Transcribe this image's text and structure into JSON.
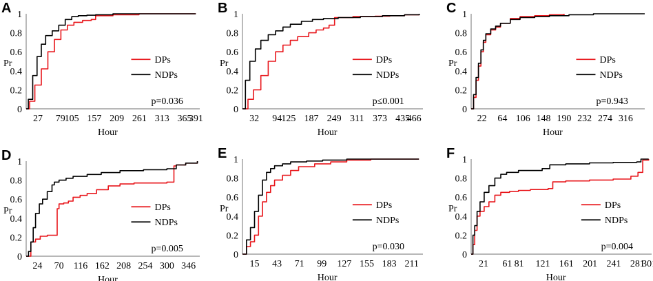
{
  "colors": {
    "dps": "#e8161b",
    "ndps": "#000000",
    "axis": "#8c8c8c"
  },
  "chart_data": [
    {
      "type": "line",
      "panel": "A",
      "xlabel": "Hour",
      "ylabel": "Pr",
      "pvalue": "p=0.036",
      "xlim": [
        0,
        400
      ],
      "ylim": [
        0,
        1
      ],
      "xticks": [
        27,
        79,
        105,
        157,
        209,
        261,
        313,
        365,
        391
      ],
      "yticks": [
        0,
        0.2,
        0.4,
        0.6,
        0.8,
        1
      ],
      "legend": [
        "DPs",
        "NDPs"
      ],
      "series": [
        {
          "name": "DPs",
          "x": [
            0,
            8,
            20,
            35,
            50,
            65,
            80,
            95,
            110,
            130,
            150,
            160,
            200,
            260,
            320,
            391
          ],
          "y": [
            0,
            0.08,
            0.25,
            0.42,
            0.6,
            0.73,
            0.83,
            0.88,
            0.91,
            0.93,
            0.94,
            0.98,
            0.99,
            1,
            1,
            1
          ]
        },
        {
          "name": "NDPs",
          "x": [
            0,
            5,
            15,
            25,
            35,
            45,
            60,
            75,
            90,
            105,
            120,
            140,
            160,
            200,
            260,
            320,
            391
          ],
          "y": [
            0,
            0.1,
            0.35,
            0.55,
            0.68,
            0.77,
            0.82,
            0.88,
            0.94,
            0.97,
            0.98,
            0.985,
            0.99,
            1,
            1,
            1,
            1
          ]
        }
      ]
    },
    {
      "type": "line",
      "panel": "B",
      "xlabel": "Hour",
      "ylabel": "Pr",
      "pvalue": "p≤0.001",
      "xlim": [
        0,
        490
      ],
      "ylim": [
        0,
        1
      ],
      "xticks": [
        32,
        94,
        125,
        187,
        249,
        311,
        373,
        435,
        466
      ],
      "yticks": [
        0,
        0.2,
        0.4,
        0.6,
        0.8,
        1
      ],
      "legend": [
        "DPs",
        "NDPs"
      ],
      "series": [
        {
          "name": "DPs",
          "x": [
            0,
            15,
            30,
            50,
            70,
            90,
            110,
            130,
            150,
            180,
            200,
            220,
            235,
            250,
            300,
            360,
            400,
            440,
            480
          ],
          "y": [
            0,
            0.1,
            0.2,
            0.35,
            0.5,
            0.6,
            0.67,
            0.72,
            0.76,
            0.8,
            0.83,
            0.85,
            0.88,
            0.96,
            0.97,
            0.975,
            0.98,
            0.99,
            1
          ]
        },
        {
          "name": "NDPs",
          "x": [
            0,
            8,
            20,
            35,
            50,
            70,
            90,
            110,
            130,
            160,
            190,
            220,
            260,
            320,
            380,
            440,
            480
          ],
          "y": [
            0,
            0.3,
            0.5,
            0.63,
            0.72,
            0.78,
            0.82,
            0.86,
            0.89,
            0.92,
            0.94,
            0.95,
            0.96,
            0.97,
            0.98,
            0.99,
            1
          ]
        }
      ]
    },
    {
      "type": "line",
      "panel": "C",
      "xlabel": "Hour",
      "ylabel": "Pr",
      "pvalue": "p=0.943",
      "xlim": [
        0,
        355
      ],
      "ylim": [
        0,
        1
      ],
      "xticks": [
        22,
        64,
        106,
        148,
        190,
        232,
        274,
        316
      ],
      "yticks": [
        0,
        0.2,
        0.4,
        0.6,
        0.8,
        1
      ],
      "legend": [
        "DPs",
        "NDPs"
      ],
      "series": [
        {
          "name": "DPs",
          "x": [
            0,
            5,
            10,
            15,
            20,
            25,
            30,
            40,
            50,
            60,
            80,
            100,
            130,
            160,
            190
          ],
          "y": [
            0,
            0.12,
            0.3,
            0.45,
            0.6,
            0.7,
            0.78,
            0.83,
            0.86,
            0.9,
            0.95,
            0.97,
            0.98,
            0.99,
            1
          ]
        },
        {
          "name": "NDPs",
          "x": [
            0,
            5,
            10,
            15,
            20,
            25,
            30,
            40,
            50,
            60,
            80,
            100,
            130,
            160,
            200,
            250,
            300,
            355
          ],
          "y": [
            0,
            0.15,
            0.33,
            0.48,
            0.62,
            0.72,
            0.79,
            0.84,
            0.87,
            0.9,
            0.94,
            0.96,
            0.97,
            0.98,
            0.99,
            1,
            1,
            1
          ]
        }
      ]
    },
    {
      "type": "line",
      "panel": "D",
      "xlabel": "Hour",
      "ylabel": "Pr",
      "pvalue": "p=0.005",
      "xlim": [
        0,
        370
      ],
      "ylim": [
        0,
        1
      ],
      "xticks": [
        24,
        70,
        116,
        162,
        208,
        254,
        300,
        346
      ],
      "yticks": [
        0,
        0.2,
        0.4,
        0.6,
        0.8,
        1
      ],
      "legend": [
        "DPs",
        "NDPs"
      ],
      "series": [
        {
          "name": "DPs",
          "x": [
            0,
            8,
            10,
            20,
            30,
            45,
            60,
            66,
            70,
            80,
            90,
            100,
            115,
            130,
            150,
            175,
            200,
            230,
            300,
            315,
            320,
            340,
            365
          ],
          "y": [
            0,
            0,
            0.15,
            0.18,
            0.21,
            0.22,
            0.22,
            0.5,
            0.55,
            0.56,
            0.58,
            0.62,
            0.64,
            0.66,
            0.7,
            0.74,
            0.76,
            0.77,
            0.78,
            0.95,
            0.96,
            0.98,
            1
          ]
        },
        {
          "name": "NDPs",
          "x": [
            0,
            5,
            10,
            15,
            20,
            28,
            35,
            45,
            55,
            60,
            70,
            85,
            100,
            130,
            160,
            200,
            250,
            300,
            320,
            340,
            365
          ],
          "y": [
            0,
            0.05,
            0.15,
            0.3,
            0.45,
            0.55,
            0.6,
            0.68,
            0.75,
            0.78,
            0.8,
            0.82,
            0.84,
            0.86,
            0.88,
            0.9,
            0.91,
            0.92,
            0.96,
            0.98,
            1
          ]
        }
      ]
    },
    {
      "type": "line",
      "panel": "E",
      "xlabel": "Hour",
      "ylabel": "Pr",
      "pvalue": "p=0.030",
      "xlim": [
        0,
        225
      ],
      "ylim": [
        0,
        1
      ],
      "xticks": [
        15,
        43,
        71,
        99,
        127,
        155,
        183,
        211
      ],
      "yticks": [
        0,
        0.2,
        0.4,
        0.6,
        0.8,
        1
      ],
      "legend": [
        "DPs",
        "NDPs"
      ],
      "series": [
        {
          "name": "DPs",
          "x": [
            0,
            5,
            10,
            15,
            20,
            25,
            30,
            35,
            40,
            50,
            60,
            70,
            90,
            110,
            130,
            160,
            200,
            220
          ],
          "y": [
            0,
            0.08,
            0.13,
            0.2,
            0.4,
            0.55,
            0.65,
            0.72,
            0.78,
            0.83,
            0.88,
            0.92,
            0.95,
            0.97,
            0.99,
            1,
            1,
            1
          ]
        },
        {
          "name": "NDPs",
          "x": [
            0,
            5,
            10,
            15,
            20,
            25,
            30,
            35,
            40,
            50,
            60,
            80,
            100,
            130,
            160,
            200,
            220
          ],
          "y": [
            0,
            0.15,
            0.28,
            0.45,
            0.62,
            0.78,
            0.86,
            0.9,
            0.93,
            0.95,
            0.97,
            0.98,
            0.99,
            1,
            1,
            1,
            1
          ]
        }
      ]
    },
    {
      "type": "line",
      "panel": "F",
      "xlabel": "Hour",
      "ylabel": "Pr",
      "pvalue": "p=0.004",
      "xlim": [
        0,
        305
      ],
      "ylim": [
        0,
        1
      ],
      "xticks": [
        21,
        61,
        81,
        121,
        161,
        201,
        241,
        281,
        301
      ],
      "yticks": [
        0,
        0.2,
        0.4,
        0.6,
        0.8,
        1
      ],
      "legend": [
        "DPs",
        "NDPs"
      ],
      "series": [
        {
          "name": "DPs",
          "x": [
            0,
            3,
            6,
            10,
            15,
            22,
            30,
            40,
            50,
            65,
            80,
            100,
            130,
            138,
            160,
            200,
            240,
            270,
            282,
            290,
            300
          ],
          "y": [
            0,
            0.1,
            0.25,
            0.4,
            0.45,
            0.5,
            0.55,
            0.62,
            0.65,
            0.66,
            0.67,
            0.68,
            0.69,
            0.76,
            0.77,
            0.78,
            0.79,
            0.82,
            0.86,
            0.99,
            1
          ]
        },
        {
          "name": "NDPs",
          "x": [
            0,
            3,
            6,
            10,
            15,
            22,
            30,
            40,
            50,
            60,
            80,
            120,
            133,
            160,
            200,
            240,
            280,
            287,
            300
          ],
          "y": [
            0,
            0.2,
            0.3,
            0.45,
            0.55,
            0.65,
            0.72,
            0.8,
            0.84,
            0.86,
            0.88,
            0.9,
            0.94,
            0.95,
            0.96,
            0.965,
            0.97,
            1,
            1
          ]
        }
      ]
    }
  ]
}
